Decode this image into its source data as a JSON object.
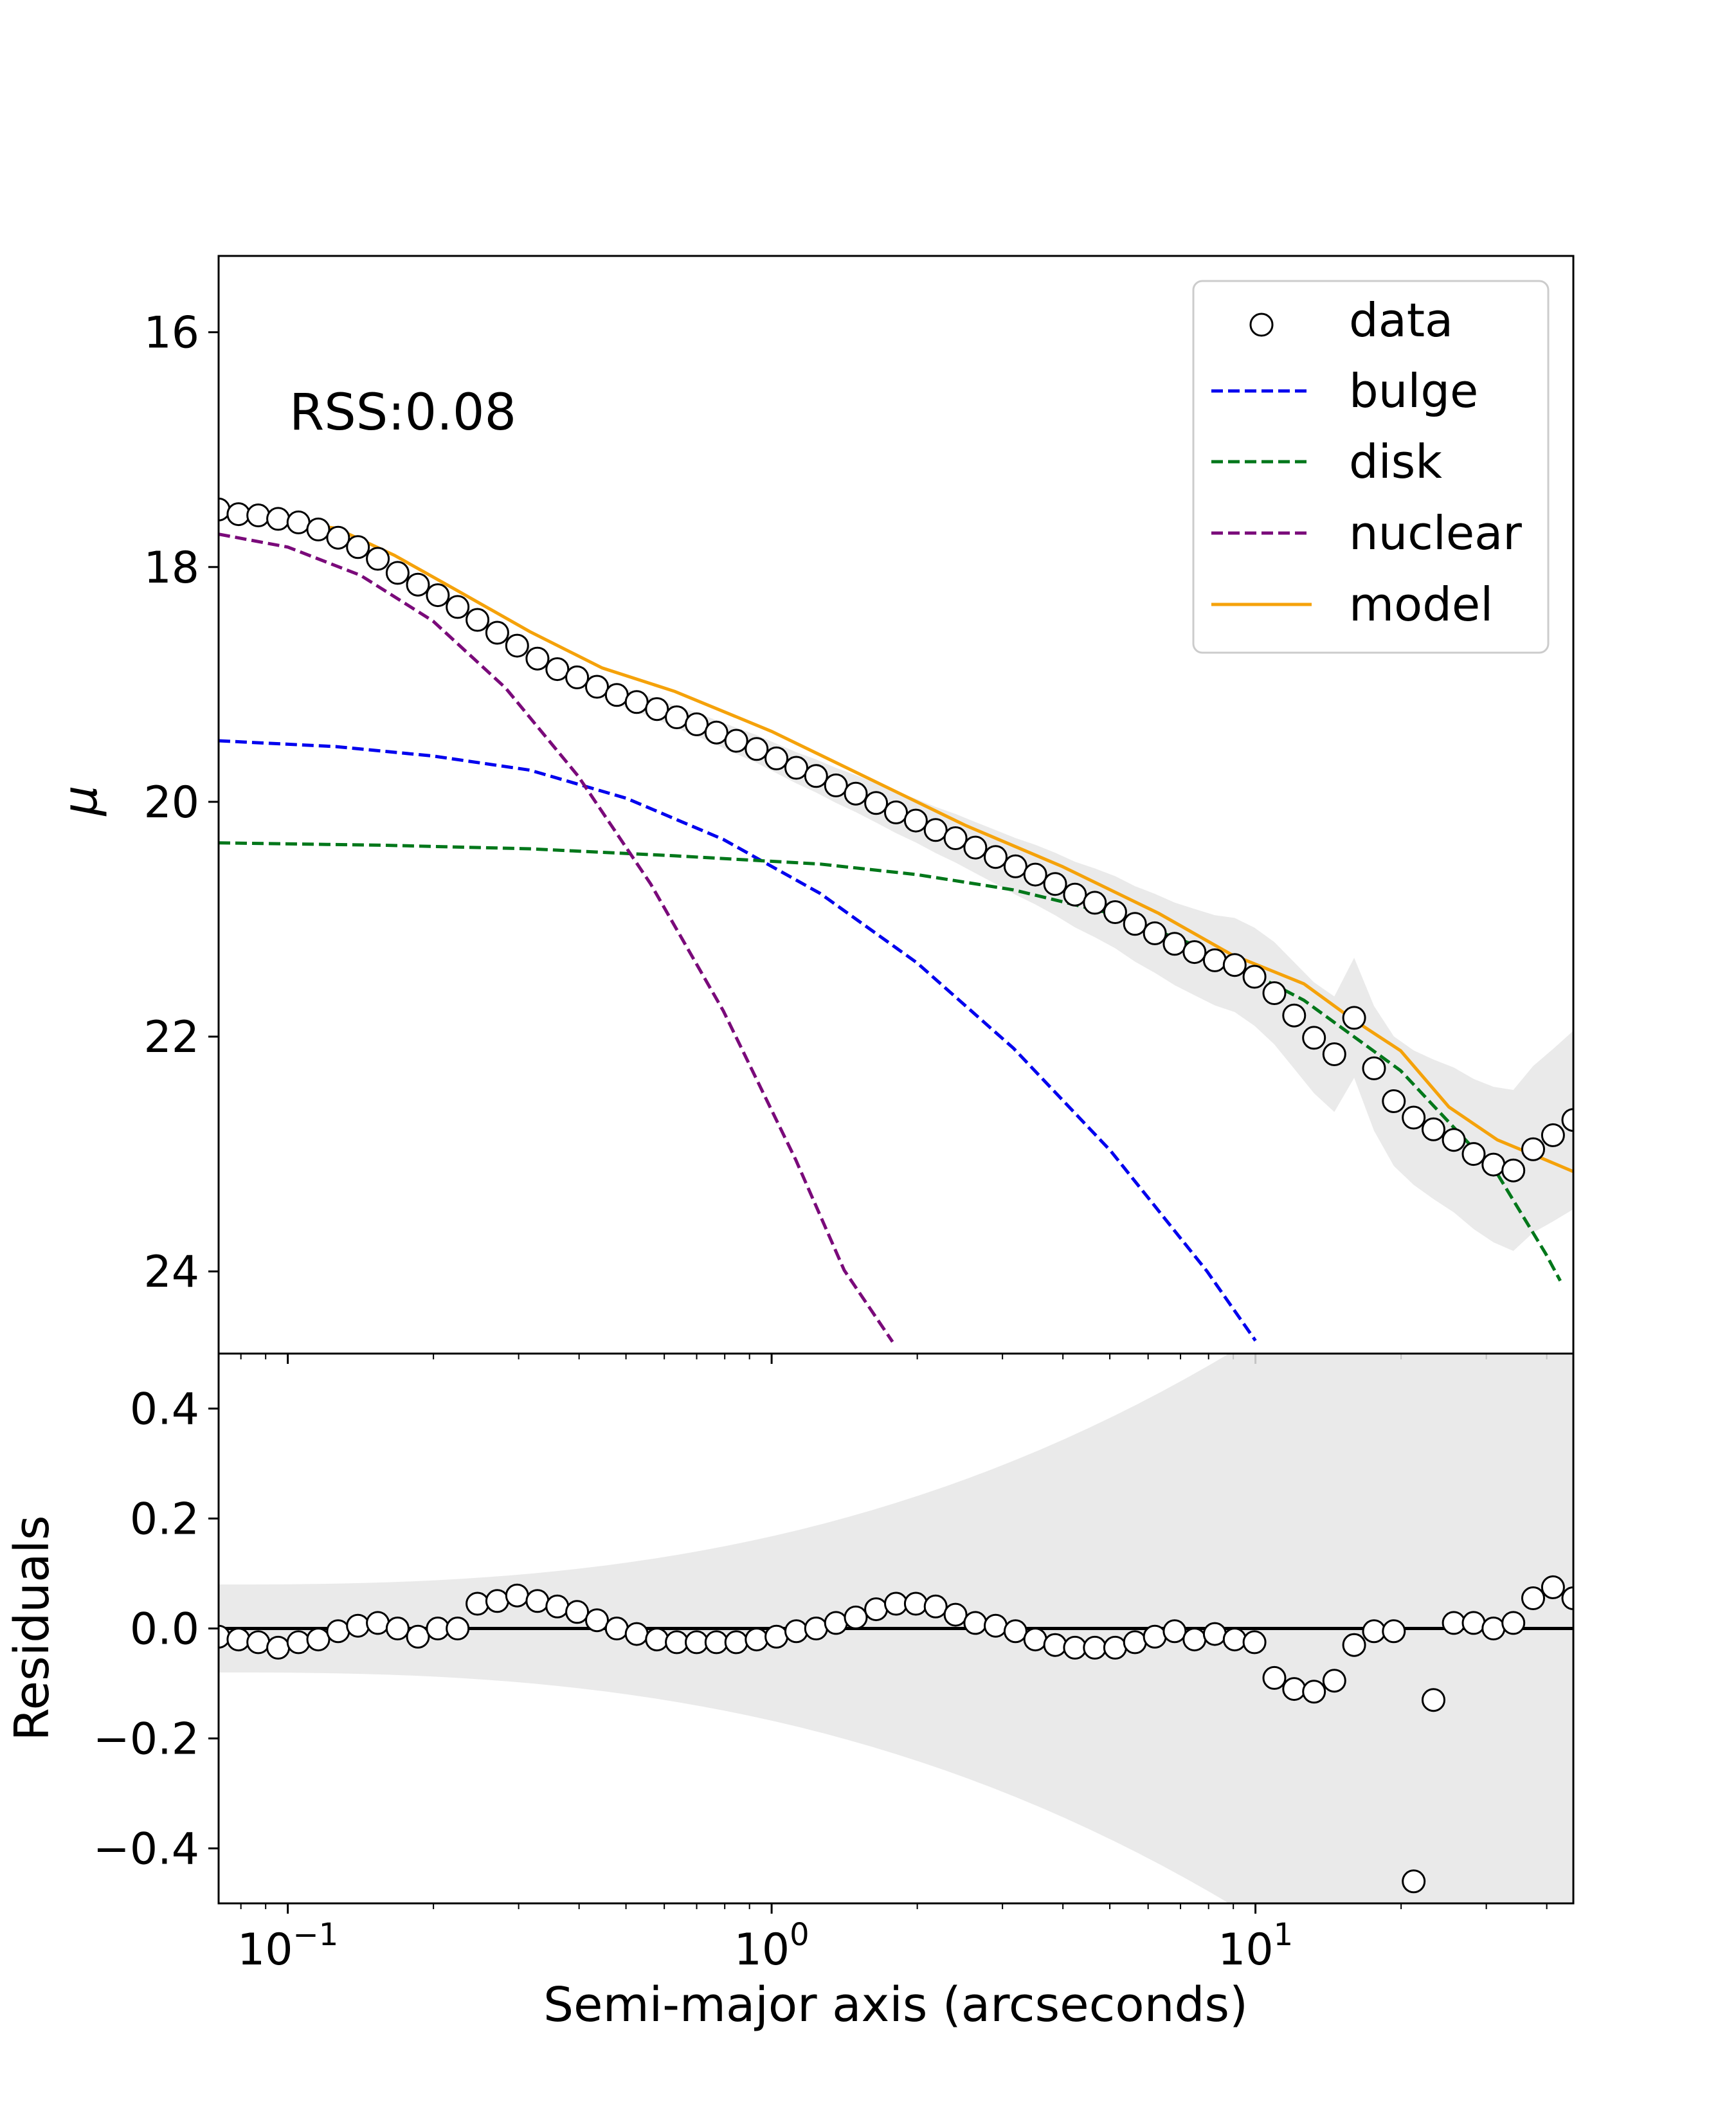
{
  "chart_data": {
    "type": "line",
    "top_panel": {
      "ylabel": "μ",
      "yticks": [
        16,
        18,
        20,
        22,
        24
      ],
      "ylim": [
        24.7,
        15.35
      ],
      "y_inverted": true,
      "annotation": "RSS:0.08",
      "legend": {
        "position": "top-right",
        "entries": [
          {
            "label": "data",
            "style": "marker-circle-open"
          },
          {
            "label": "bulge",
            "style": "dashed",
            "color": "#0000ee"
          },
          {
            "label": "disk",
            "style": "dashed",
            "color": "#00771a"
          },
          {
            "label": "nuclear",
            "style": "dashed",
            "color": "#7a0a7a"
          },
          {
            "label": "model",
            "style": "solid",
            "color": "#f5a20a"
          }
        ]
      },
      "series": [
        {
          "name": "data",
          "x_log10": [
            -1.143,
            -1.102,
            -1.061,
            -1.02,
            -0.978,
            -0.937,
            -0.896,
            -0.855,
            -0.814,
            -0.773,
            -0.731,
            -0.69,
            -0.649,
            -0.608,
            -0.567,
            -0.526,
            -0.484,
            -0.443,
            -0.402,
            -0.361,
            -0.32,
            -0.279,
            -0.237,
            -0.196,
            -0.155,
            -0.114,
            -0.073,
            -0.031,
            0.01,
            0.051,
            0.092,
            0.133,
            0.174,
            0.216,
            0.257,
            0.298,
            0.339,
            0.38,
            0.421,
            0.463,
            0.504,
            0.545,
            0.586,
            0.627,
            0.668,
            0.71,
            0.751,
            0.792,
            0.833,
            0.874,
            0.916,
            0.957,
            0.998,
            1.039,
            1.08,
            1.121,
            1.163,
            1.204,
            1.245,
            1.286,
            1.327,
            1.368,
            1.41,
            1.451,
            1.492,
            1.533,
            1.574,
            1.615,
            1.657
          ],
          "y": [
            17.51,
            17.55,
            17.56,
            17.59,
            17.62,
            17.68,
            17.75,
            17.83,
            17.93,
            18.05,
            18.15,
            18.24,
            18.34,
            18.45,
            18.56,
            18.67,
            18.78,
            18.87,
            18.94,
            19.02,
            19.09,
            19.15,
            19.21,
            19.28,
            19.34,
            19.41,
            19.48,
            19.55,
            19.63,
            19.71,
            19.78,
            19.86,
            19.93,
            20.01,
            20.09,
            20.16,
            20.24,
            20.31,
            20.39,
            20.47,
            20.55,
            20.62,
            20.7,
            20.79,
            20.86,
            20.94,
            21.04,
            21.12,
            21.21,
            21.28,
            21.35,
            21.39,
            21.49,
            21.63,
            21.82,
            22.01,
            22.15,
            21.84,
            22.27,
            22.55,
            22.69,
            22.79,
            22.88,
            23.0,
            23.09,
            23.14,
            22.96,
            22.84,
            22.71
          ]
        },
        {
          "name": "bulge",
          "color": "#0000ee",
          "points": [
            [
              -1.143,
              19.48
            ],
            [
              -0.9,
              19.53
            ],
            [
              -0.7,
              19.61
            ],
            [
              -0.5,
              19.73
            ],
            [
              -0.3,
              19.97
            ],
            [
              -0.1,
              20.32
            ],
            [
              0.1,
              20.78
            ],
            [
              0.3,
              21.37
            ],
            [
              0.5,
              22.1
            ],
            [
              0.7,
              22.97
            ],
            [
              0.9,
              24.0
            ],
            [
              1.0,
              24.59
            ]
          ]
        },
        {
          "name": "disk",
          "color": "#00771a",
          "points": [
            [
              -1.143,
              20.35
            ],
            [
              -0.8,
              20.37
            ],
            [
              -0.5,
              20.4
            ],
            [
              -0.2,
              20.46
            ],
            [
              0.1,
              20.53
            ],
            [
              0.3,
              20.62
            ],
            [
              0.5,
              20.75
            ],
            [
              0.7,
              20.95
            ],
            [
              0.9,
              21.26
            ],
            [
              1.1,
              21.69
            ],
            [
              1.3,
              22.29
            ],
            [
              1.5,
              23.17
            ],
            [
              1.6,
              23.85
            ],
            [
              1.63,
              24.08
            ]
          ]
        },
        {
          "name": "nuclear",
          "color": "#7a0a7a",
          "points": [
            [
              -1.143,
              17.72
            ],
            [
              -1.0,
              17.83
            ],
            [
              -0.85,
              18.07
            ],
            [
              -0.7,
              18.46
            ],
            [
              -0.55,
              19.03
            ],
            [
              -0.4,
              19.78
            ],
            [
              -0.25,
              20.7
            ],
            [
              -0.1,
              21.78
            ],
            [
              0.05,
              23.05
            ],
            [
              0.15,
              23.99
            ],
            [
              0.25,
              24.6
            ]
          ]
        },
        {
          "name": "model",
          "color": "#f5a20a",
          "points": [
            [
              -1.143,
              17.56
            ],
            [
              -1.02,
              17.6
            ],
            [
              -0.9,
              17.67
            ],
            [
              -0.78,
              17.9
            ],
            [
              -0.65,
              18.2
            ],
            [
              -0.5,
              18.55
            ],
            [
              -0.35,
              18.86
            ],
            [
              -0.2,
              19.06
            ],
            [
              0.0,
              19.4
            ],
            [
              0.2,
              19.8
            ],
            [
              0.4,
              20.2
            ],
            [
              0.6,
              20.55
            ],
            [
              0.8,
              20.95
            ],
            [
              0.95,
              21.3
            ],
            [
              1.1,
              21.55
            ],
            [
              1.2,
              21.85
            ],
            [
              1.3,
              22.12
            ],
            [
              1.4,
              22.6
            ],
            [
              1.5,
              22.88
            ],
            [
              1.6,
              23.05
            ],
            [
              1.657,
              23.15
            ]
          ]
        }
      ]
    },
    "bottom_panel": {
      "ylabel": "Residuals",
      "yticks": [
        0.4,
        0.2,
        0.0,
        -0.2,
        -0.4
      ],
      "ytick_labels": [
        "0.4",
        "0.2",
        "0.0",
        "−0.2",
        "−0.4"
      ],
      "ylim": [
        -0.5,
        0.5
      ],
      "reference_line": 0.0,
      "series": [
        {
          "name": "residuals",
          "x_log10": [
            -1.143,
            -1.102,
            -1.061,
            -1.02,
            -0.978,
            -0.937,
            -0.896,
            -0.855,
            -0.814,
            -0.773,
            -0.731,
            -0.69,
            -0.649,
            -0.608,
            -0.567,
            -0.526,
            -0.484,
            -0.443,
            -0.402,
            -0.361,
            -0.32,
            -0.279,
            -0.237,
            -0.196,
            -0.155,
            -0.114,
            -0.073,
            -0.031,
            0.01,
            0.051,
            0.092,
            0.133,
            0.174,
            0.216,
            0.257,
            0.298,
            0.339,
            0.38,
            0.421,
            0.463,
            0.504,
            0.545,
            0.586,
            0.627,
            0.668,
            0.71,
            0.751,
            0.792,
            0.833,
            0.874,
            0.916,
            0.957,
            0.998,
            1.039,
            1.08,
            1.121,
            1.163,
            1.204,
            1.245,
            1.286,
            1.327,
            1.368,
            1.41,
            1.451,
            1.492,
            1.533,
            1.574,
            1.615,
            1.657
          ],
          "y": [
            -0.015,
            -0.02,
            -0.025,
            -0.035,
            -0.025,
            -0.02,
            -0.005,
            0.005,
            0.01,
            0.0,
            -0.015,
            0.0,
            0.0,
            0.045,
            0.05,
            0.06,
            0.05,
            0.04,
            0.03,
            0.015,
            0.0,
            -0.01,
            -0.02,
            -0.025,
            -0.025,
            -0.025,
            -0.025,
            -0.02,
            -0.015,
            -0.005,
            0.0,
            0.01,
            0.02,
            0.035,
            0.045,
            0.045,
            0.04,
            0.025,
            0.01,
            0.005,
            -0.005,
            -0.02,
            -0.03,
            -0.035,
            -0.035,
            -0.035,
            -0.025,
            -0.015,
            -0.005,
            -0.02,
            -0.01,
            -0.02,
            -0.025,
            -0.09,
            -0.11,
            -0.115,
            -0.095,
            -0.03,
            -0.005,
            -0.005,
            -0.46,
            -0.13,
            0.01,
            0.01,
            0.0,
            0.01,
            0.055,
            0.075,
            0.055
          ]
        }
      ]
    },
    "shared_x": {
      "xlabel": "Semi-major axis (arcseconds)",
      "scale": "log",
      "xlim_log10": [
        -1.143,
        1.657
      ],
      "major_ticks_log10": [
        -1,
        0,
        1
      ],
      "major_tick_labels": [
        {
          "base": "10",
          "exp": "−1"
        },
        {
          "base": "10",
          "exp": "0"
        },
        {
          "base": "10",
          "exp": "1"
        }
      ]
    }
  }
}
